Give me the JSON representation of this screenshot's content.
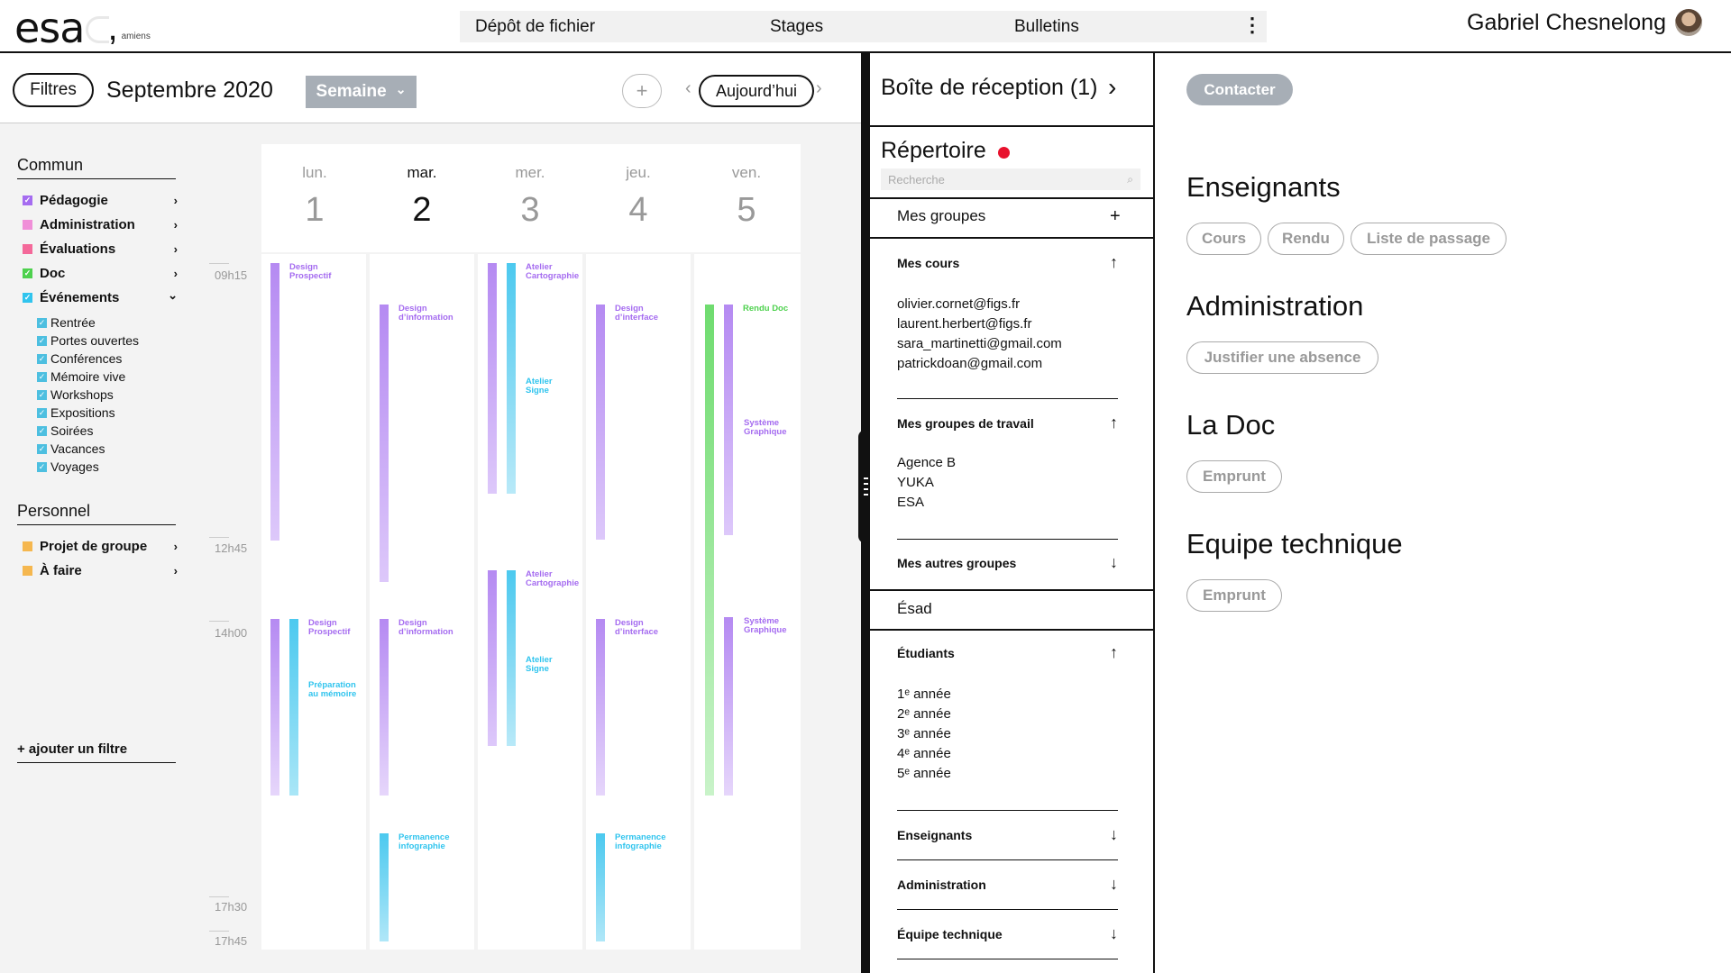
{
  "header": {
    "logo_text": "esa",
    "logo_comma": ",",
    "logo_city": "amiens",
    "nav": [
      "Dépôt de fichier",
      "Stages",
      "Bulletins"
    ],
    "more_label": "⋮",
    "user_name": "Gabriel Chesnelong"
  },
  "toolbar": {
    "filters_label": "Filtres",
    "month": "Septembre 2020",
    "view_label": "Semaine",
    "view_caret": "⌄",
    "add_label": "+",
    "prev_label": "‹",
    "today_label": "Aujourd’hui",
    "next_label": "›"
  },
  "sidebar": {
    "common_title": "Commun",
    "categories": [
      {
        "label": "Pédagogie",
        "color": "#a56cf0",
        "checked": true
      },
      {
        "label": "Administration",
        "color": "#f08fd8",
        "checked": false
      },
      {
        "label": "Évaluations",
        "color": "#f4699a",
        "checked": false
      },
      {
        "label": "Doc",
        "color": "#4ed14e",
        "checked": true
      },
      {
        "label": "Événements",
        "color": "#30c4ee",
        "checked": true
      }
    ],
    "chevron": "›",
    "chevron_open": "⌄",
    "events_sub": [
      "Rentrée",
      "Portes ouvertes",
      "Conférences",
      "Mémoire vive",
      "Workshops",
      "Expositions",
      "Soirées",
      "Vacances",
      "Voyages"
    ],
    "check_mark": "✓",
    "personal_title": "Personnel",
    "personal": [
      {
        "label": "Projet de groupe",
        "color": "#f5b74f"
      },
      {
        "label": "À faire",
        "color": "#f5b74f"
      }
    ],
    "add_filter": "+ ajouter un filtre"
  },
  "calendar": {
    "times": [
      "09h15",
      "12h45",
      "14h00",
      "17h30",
      "17h45"
    ],
    "days": [
      {
        "name": "lun.",
        "num": "1"
      },
      {
        "name": "mar.",
        "num": "2"
      },
      {
        "name": "mer.",
        "num": "3"
      },
      {
        "name": "jeu.",
        "num": "4"
      },
      {
        "name": "ven.",
        "num": "5"
      }
    ],
    "events": {
      "design_prospectif": "Design\nProspectif",
      "design_information": "Design\nd’information",
      "atelier_cartographie": "Atelier\nCartographie",
      "atelier_signe": "Atelier\nSigne",
      "design_interface": "Design\nd’interface",
      "rendu_doc": "Rendu Doc",
      "systeme_graphique": "Système\nGraphique",
      "preparation_memoire": "Préparation\nau mémoire",
      "permanence_infographie": "Permanence\ninfographie"
    }
  },
  "directory": {
    "inbox": "Boîte de réception (1)",
    "inbox_arrow": "›",
    "repertoire": "Répertoire",
    "search_placeholder": "Recherche",
    "search_icon": "⌕",
    "mes_groupes": "Mes groupes",
    "plus": "+",
    "mes_cours": "Mes cours",
    "cours_emails": [
      "olivier.cornet@figs.fr",
      "laurent.herbert@figs.fr",
      "sara_martinetti@gmail.com",
      "patrickdoan@gmail.com"
    ],
    "groupes_travail": "Mes groupes de travail",
    "groupes_travail_items": [
      "Agence B",
      "YUKA",
      "ESA"
    ],
    "autres_groupes": "Mes autres groupes",
    "esad": "Ésad",
    "etudiants": "Étudiants",
    "annees": [
      "1ᵉ année",
      "2ᵉ année",
      "3ᵉ année",
      "4ᵉ année",
      "5ᵉ année"
    ],
    "enseignants": "Enseignants",
    "administration": "Administration",
    "equipe": "Équipe technique",
    "arrow_up": "↑",
    "arrow_down": "↓"
  },
  "contact_panel": {
    "contact_label": "Contacter",
    "sections": [
      {
        "title": "Enseignants",
        "chips": [
          "Cours",
          "Rendu",
          "Liste de passage"
        ]
      },
      {
        "title": "Administration",
        "chips": [
          "Justifier une absence"
        ]
      },
      {
        "title": "La Doc",
        "chips": [
          "Emprunt"
        ]
      },
      {
        "title": "Equipe technique",
        "chips": [
          "Emprunt"
        ]
      }
    ]
  }
}
